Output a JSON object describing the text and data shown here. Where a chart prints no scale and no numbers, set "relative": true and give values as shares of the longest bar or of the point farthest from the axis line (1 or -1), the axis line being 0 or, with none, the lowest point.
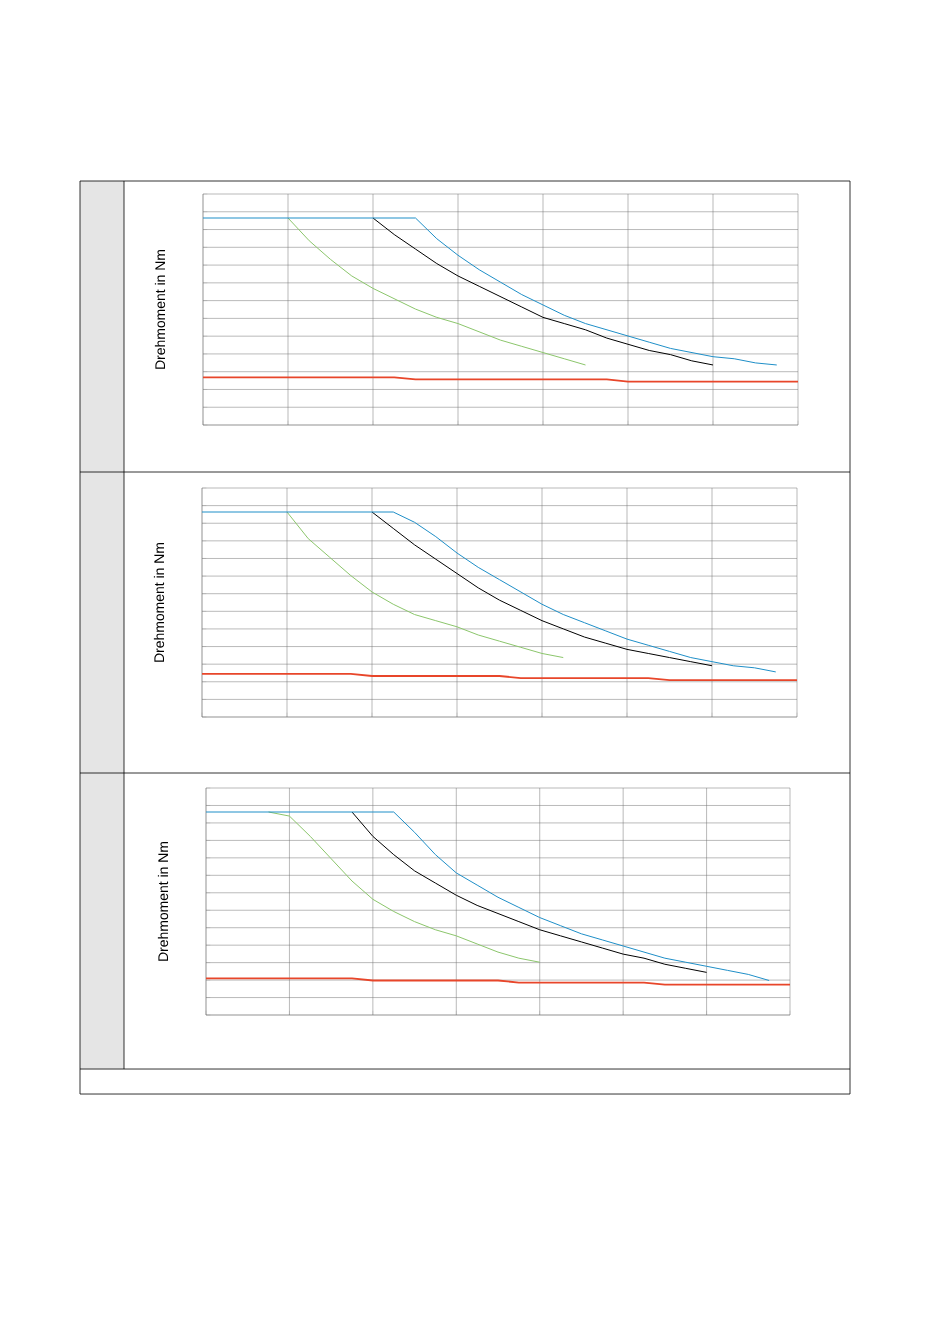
{
  "chart_data": [
    {
      "type": "line",
      "relative": true,
      "ylabel": "Drehmoment in Nm",
      "grid": true,
      "tick_labels": false,
      "categories": [
        null,
        null,
        null,
        null,
        null,
        null,
        null,
        null,
        null,
        null,
        null,
        null,
        null,
        null,
        null,
        null,
        null,
        null,
        null,
        null,
        null,
        null,
        null,
        null,
        null,
        null,
        null,
        null,
        null
      ],
      "series": [
        {
          "color": "#8cc66c",
          "values": [
            null,
            null,
            null,
            null,
            1,
            0.89,
            0.8,
            0.72,
            0.66,
            0.61,
            0.56,
            0.52,
            0.49,
            0.45,
            0.41,
            0.38,
            0.35,
            0.32,
            0.29,
            null,
            null,
            null,
            null,
            null,
            null,
            null,
            null,
            null,
            null
          ]
        },
        {
          "color": "#000000",
          "values": [
            null,
            null,
            null,
            null,
            null,
            null,
            null,
            null,
            1,
            0.92,
            0.85,
            0.78,
            0.72,
            0.67,
            0.62,
            0.57,
            0.52,
            0.49,
            0.46,
            0.42,
            0.39,
            0.36,
            0.34,
            0.31,
            0.29,
            null,
            null,
            null,
            null
          ]
        },
        {
          "color": "#1f8fc8",
          "values": [
            1,
            1,
            1,
            1,
            1,
            1,
            1,
            1,
            1,
            1,
            1,
            0.9,
            0.82,
            0.75,
            0.69,
            0.63,
            0.58,
            0.53,
            0.49,
            0.46,
            0.43,
            0.4,
            0.37,
            0.35,
            0.33,
            0.32,
            0.3,
            0.29,
            null
          ]
        },
        {
          "color": "#e8462a",
          "values": [
            0.23,
            0.23,
            0.23,
            0.23,
            0.23,
            0.23,
            0.23,
            0.23,
            0.23,
            0.23,
            0.22,
            0.22,
            0.22,
            0.22,
            0.22,
            0.22,
            0.22,
            0.22,
            0.22,
            0.22,
            0.21,
            0.21,
            0.21,
            0.21,
            0.21,
            0.21,
            0.21,
            0.21,
            0.21
          ]
        }
      ]
    },
    {
      "type": "line",
      "relative": true,
      "ylabel": "Drehmoment in Nm",
      "grid": true,
      "tick_labels": false,
      "categories": [
        null,
        null,
        null,
        null,
        null,
        null,
        null,
        null,
        null,
        null,
        null,
        null,
        null,
        null,
        null,
        null,
        null,
        null,
        null,
        null,
        null,
        null,
        null,
        null,
        null,
        null,
        null,
        null,
        null
      ],
      "series": [
        {
          "color": "#8cc66c",
          "values": [
            null,
            null,
            null,
            null,
            1,
            0.87,
            0.78,
            0.69,
            0.61,
            0.55,
            0.5,
            0.47,
            0.44,
            0.4,
            0.37,
            0.34,
            0.31,
            0.29,
            null,
            null,
            null,
            null,
            null,
            null,
            null,
            null,
            null,
            null,
            null
          ]
        },
        {
          "color": "#000000",
          "values": [
            null,
            null,
            null,
            null,
            null,
            null,
            null,
            null,
            1,
            0.92,
            0.84,
            0.77,
            0.7,
            0.63,
            0.57,
            0.52,
            0.47,
            0.43,
            0.39,
            0.36,
            0.33,
            0.31,
            0.29,
            0.27,
            0.25,
            null,
            null,
            null,
            null
          ]
        },
        {
          "color": "#1f8fc8",
          "values": [
            1,
            1,
            1,
            1,
            1,
            1,
            1,
            1,
            1,
            1,
            0.95,
            0.88,
            0.8,
            0.73,
            0.67,
            0.61,
            0.55,
            0.5,
            0.46,
            0.42,
            0.38,
            0.35,
            0.32,
            0.29,
            0.27,
            0.25,
            0.24,
            0.22,
            null
          ]
        },
        {
          "color": "#e8462a",
          "values": [
            0.21,
            0.21,
            0.21,
            0.21,
            0.21,
            0.21,
            0.21,
            0.21,
            0.2,
            0.2,
            0.2,
            0.2,
            0.2,
            0.2,
            0.2,
            0.19,
            0.19,
            0.19,
            0.19,
            0.19,
            0.19,
            0.19,
            0.18,
            0.18,
            0.18,
            0.18,
            0.18,
            0.18,
            0.18
          ]
        }
      ]
    },
    {
      "type": "line",
      "relative": true,
      "ylabel": "Drehmoment in Nm",
      "grid": true,
      "tick_labels": false,
      "categories": [
        null,
        null,
        null,
        null,
        null,
        null,
        null,
        null,
        null,
        null,
        null,
        null,
        null,
        null,
        null,
        null,
        null,
        null,
        null,
        null,
        null,
        null,
        null,
        null,
        null,
        null,
        null,
        null,
        null
      ],
      "series": [
        {
          "color": "#8cc66c",
          "values": [
            null,
            null,
            null,
            1,
            0.98,
            0.88,
            0.77,
            0.66,
            0.57,
            0.51,
            0.46,
            0.42,
            0.39,
            0.35,
            0.31,
            0.28,
            0.26,
            null,
            null,
            null,
            null,
            null,
            null,
            null,
            null,
            null,
            null,
            null,
            null
          ]
        },
        {
          "color": "#000000",
          "values": [
            null,
            null,
            null,
            null,
            null,
            null,
            null,
            1,
            0.88,
            0.79,
            0.71,
            0.65,
            0.59,
            0.54,
            0.5,
            0.46,
            0.42,
            0.39,
            0.36,
            0.33,
            0.3,
            0.28,
            0.25,
            0.23,
            0.21,
            null,
            null,
            null,
            null
          ]
        },
        {
          "color": "#1f8fc8",
          "values": [
            1,
            1,
            1,
            1,
            1,
            1,
            1,
            1,
            1,
            1,
            0.9,
            0.79,
            0.7,
            0.64,
            0.58,
            0.53,
            0.48,
            0.44,
            0.4,
            0.37,
            0.34,
            0.31,
            0.28,
            0.26,
            0.24,
            0.22,
            0.2,
            0.17,
            null
          ]
        },
        {
          "color": "#e8462a",
          "values": [
            0.18,
            0.18,
            0.18,
            0.18,
            0.18,
            0.18,
            0.18,
            0.18,
            0.17,
            0.17,
            0.17,
            0.17,
            0.17,
            0.17,
            0.17,
            0.16,
            0.16,
            0.16,
            0.16,
            0.16,
            0.16,
            0.16,
            0.15,
            0.15,
            0.15,
            0.15,
            0.15,
            0.15,
            0.15
          ]
        }
      ]
    }
  ]
}
